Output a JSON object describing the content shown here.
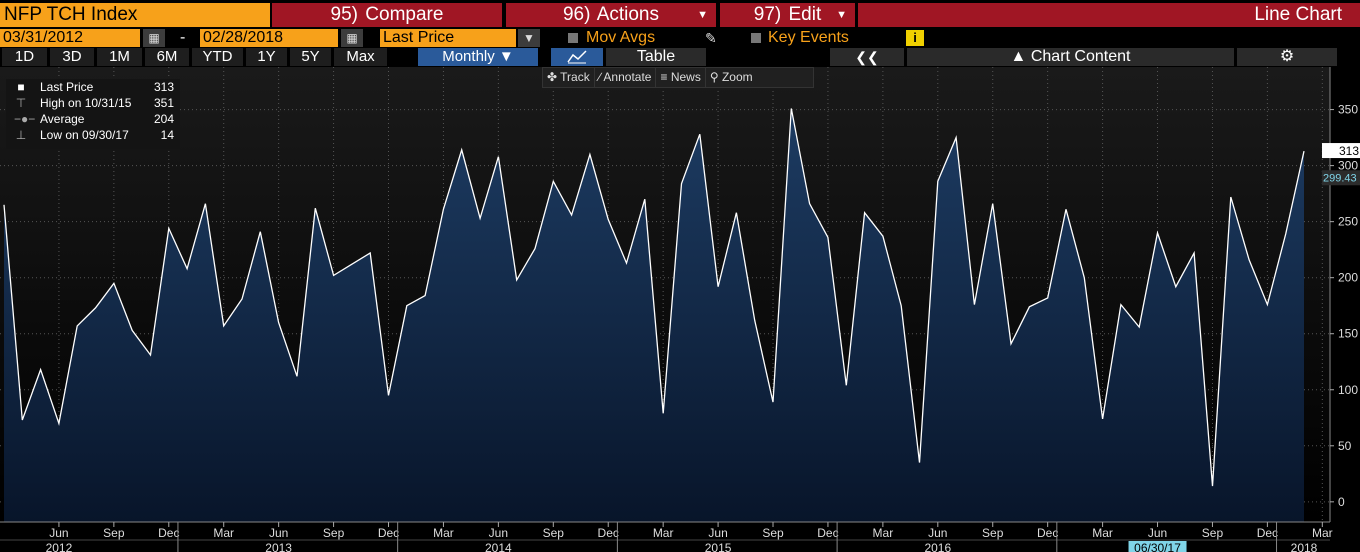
{
  "header": {
    "ticker": "NFP TCH Index",
    "compare": {
      "num": "95)",
      "label": "Compare"
    },
    "actions": {
      "num": "96)",
      "label": "Actions"
    },
    "edit": {
      "num": "97)",
      "label": "Edit"
    },
    "chart_type": "Line Chart"
  },
  "range": {
    "start": "03/31/2012",
    "dash": "-",
    "end": "02/28/2018",
    "field": "Last Price",
    "mov_avgs": "Mov Avgs",
    "key_events": "Key Events"
  },
  "periods": [
    "1D",
    "3D",
    "1M",
    "6M",
    "YTD",
    "1Y",
    "5Y",
    "Max"
  ],
  "frequency": "Monthly",
  "table_label": "Table",
  "chart_content_label": "Chart Content",
  "tools": [
    "Track",
    "Annotate",
    "News",
    "Zoom"
  ],
  "legend": {
    "last": {
      "label": "Last Price",
      "value": "313"
    },
    "high": {
      "label": "High on 10/31/15",
      "value": "351"
    },
    "avg": {
      "label": "Average",
      "value": "204"
    },
    "low": {
      "label": "Low on 09/30/17",
      "value": "14"
    }
  },
  "colors": {
    "accent": "#f7a11a",
    "button_red": "#a01624",
    "line": "#ffffff",
    "area_top": "#1d3c63",
    "area_bottom": "#08152a"
  },
  "chart_data": {
    "type": "area",
    "x": [
      "2012-03",
      "2012-04",
      "2012-05",
      "2012-06",
      "2012-07",
      "2012-08",
      "2012-09",
      "2012-10",
      "2012-11",
      "2012-12",
      "2013-01",
      "2013-02",
      "2013-03",
      "2013-04",
      "2013-05",
      "2013-06",
      "2013-07",
      "2013-08",
      "2013-09",
      "2013-10",
      "2013-11",
      "2013-12",
      "2014-01",
      "2014-02",
      "2014-03",
      "2014-04",
      "2014-05",
      "2014-06",
      "2014-07",
      "2014-08",
      "2014-09",
      "2014-10",
      "2014-11",
      "2014-12",
      "2015-01",
      "2015-02",
      "2015-03",
      "2015-04",
      "2015-05",
      "2015-06",
      "2015-07",
      "2015-08",
      "2015-09",
      "2015-10",
      "2015-11",
      "2015-12",
      "2016-01",
      "2016-02",
      "2016-03",
      "2016-04",
      "2016-05",
      "2016-06",
      "2016-07",
      "2016-08",
      "2016-09",
      "2016-10",
      "2016-11",
      "2016-12",
      "2017-01",
      "2017-02",
      "2017-03",
      "2017-04",
      "2017-05",
      "2017-06",
      "2017-07",
      "2017-08",
      "2017-09",
      "2017-10",
      "2017-11",
      "2017-12",
      "2018-01",
      "2018-02"
    ],
    "values": [
      265,
      73,
      118,
      70,
      157,
      173,
      195,
      153,
      131,
      244,
      208,
      266,
      157,
      181,
      241,
      160,
      112,
      262,
      202,
      212,
      222,
      95,
      175,
      184,
      261,
      314,
      253,
      308,
      198,
      226,
      286,
      256,
      310,
      252,
      213,
      270,
      79,
      284,
      328,
      192,
      258,
      162,
      89,
      351,
      266,
      236,
      104,
      258,
      237,
      175,
      35,
      286,
      325,
      176,
      266,
      141,
      174,
      182,
      261,
      200,
      74,
      176,
      156,
      240,
      192,
      222,
      14,
      272,
      216,
      176,
      239,
      313
    ],
    "x_tick_labels": [
      "Jun",
      "Sep",
      "Dec",
      "Mar",
      "Jun",
      "Sep",
      "Dec",
      "Mar",
      "Jun",
      "Sep",
      "Dec",
      "Mar",
      "Jun",
      "Sep",
      "Dec",
      "Mar",
      "Jun",
      "Sep",
      "Dec",
      "Mar",
      "Jun",
      "Sep",
      "Dec",
      "Mar"
    ],
    "x_tick_index": [
      3,
      6,
      9,
      12,
      15,
      18,
      21,
      24,
      27,
      30,
      33,
      36,
      39,
      42,
      45,
      48,
      51,
      54,
      57,
      60,
      63,
      66,
      69,
      72
    ],
    "year_labels": [
      {
        "label": "2012",
        "index": 3
      },
      {
        "label": "2013",
        "index": 15
      },
      {
        "label": "2014",
        "index": 27
      },
      {
        "label": "2015",
        "index": 39
      },
      {
        "label": "2016",
        "index": 51
      },
      {
        "label": "06/30/17",
        "index": 63
      },
      {
        "label": "2018",
        "index": 71
      }
    ],
    "y_ticks": [
      0,
      50,
      100,
      150,
      200,
      250,
      300,
      350
    ],
    "ylim": [
      -18,
      388
    ],
    "last_value_label": "313",
    "ref_value_label": "299.43",
    "ref_value": 299.43,
    "grid": true
  }
}
